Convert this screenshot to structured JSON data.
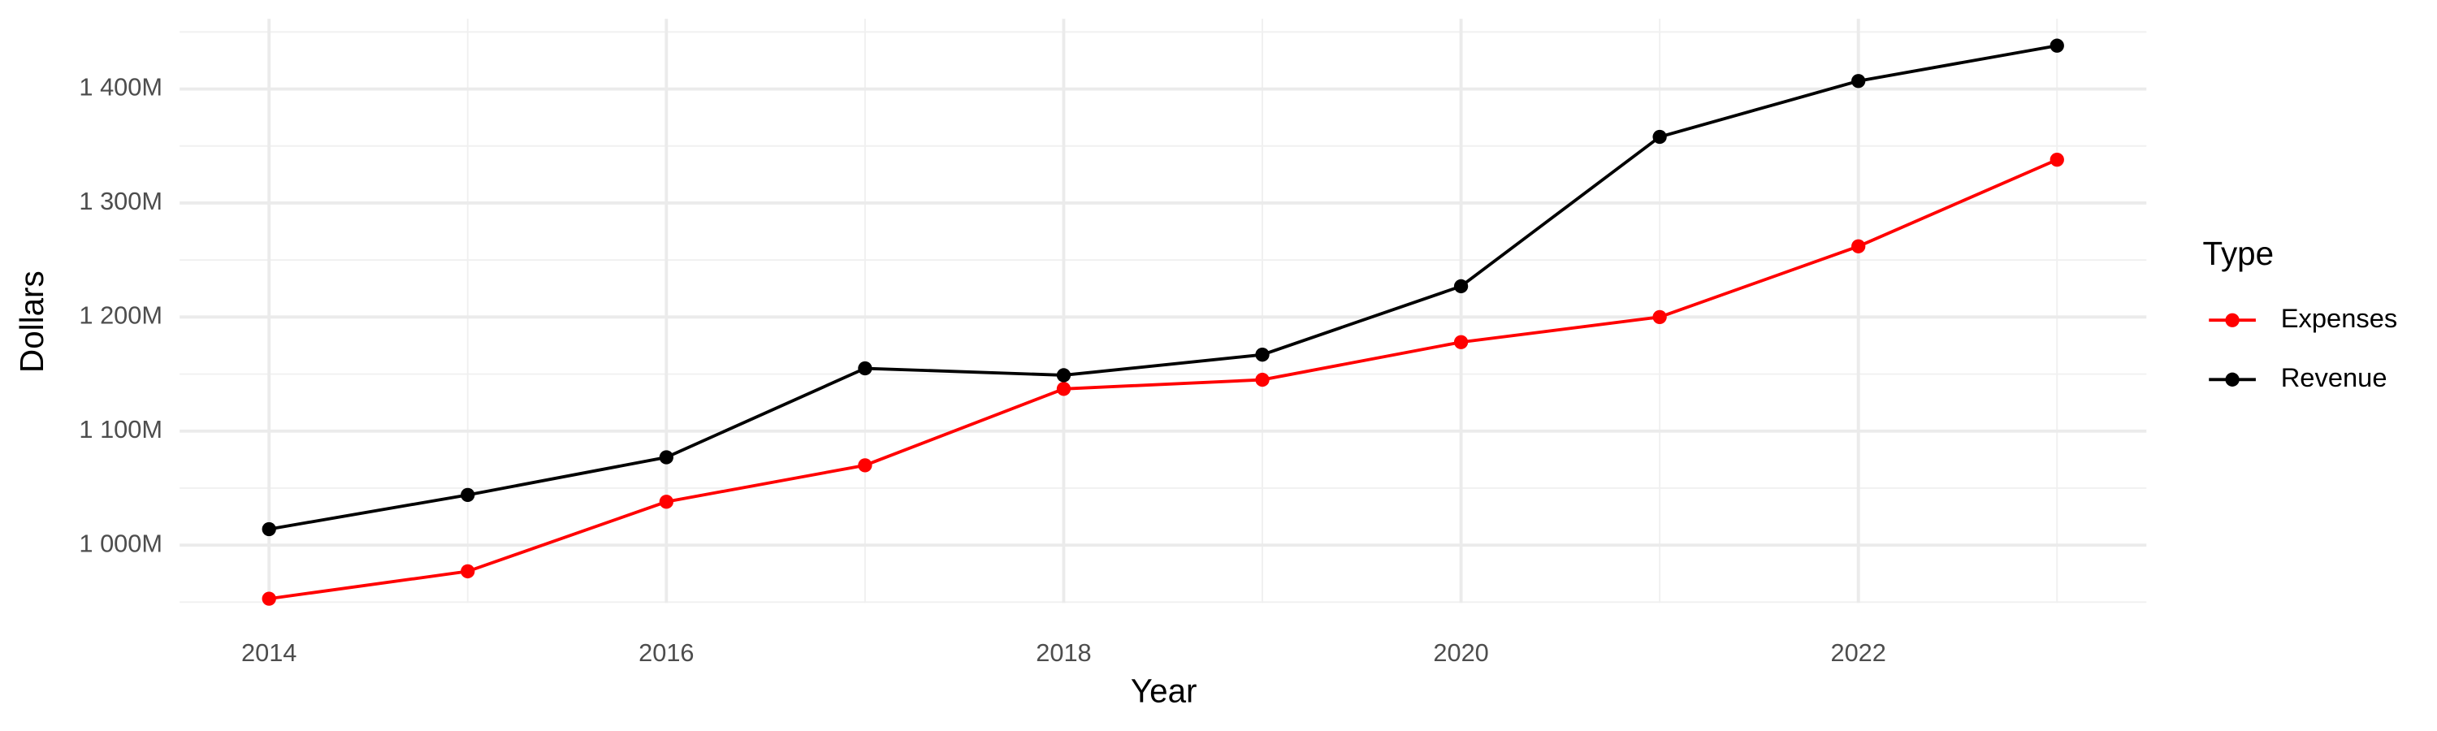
{
  "chart_data": {
    "type": "line",
    "x_label": "Year",
    "y_label": "Dollars",
    "legend_title": "Type",
    "x": [
      2014,
      2015,
      2016,
      2017,
      2018,
      2019,
      2020,
      2021,
      2022,
      2023
    ],
    "series": [
      {
        "name": "Expenses",
        "color": "#ff0000",
        "values": [
          953,
          977,
          1038,
          1070,
          1137,
          1145,
          1178,
          1200,
          1262,
          1338
        ]
      },
      {
        "name": "Revenue",
        "color": "#000000",
        "values": [
          1014,
          1044,
          1077,
          1155,
          1149,
          1167,
          1227,
          1358,
          1407,
          1438
        ]
      }
    ],
    "xlim": [
      2013.55,
      2023.45
    ],
    "xticks": [
      2014,
      2016,
      2018,
      2020,
      2022
    ],
    "ylim": [
      949.3,
      1461.6
    ],
    "yticks": [
      {
        "value": 1000,
        "label": "1 000M"
      },
      {
        "value": 1100,
        "label": "1 100M"
      },
      {
        "value": 1200,
        "label": "1 200M"
      },
      {
        "value": 1300,
        "label": "1 300M"
      },
      {
        "value": 1400,
        "label": "1 400M"
      }
    ],
    "grid": true,
    "legend_position": "right"
  }
}
